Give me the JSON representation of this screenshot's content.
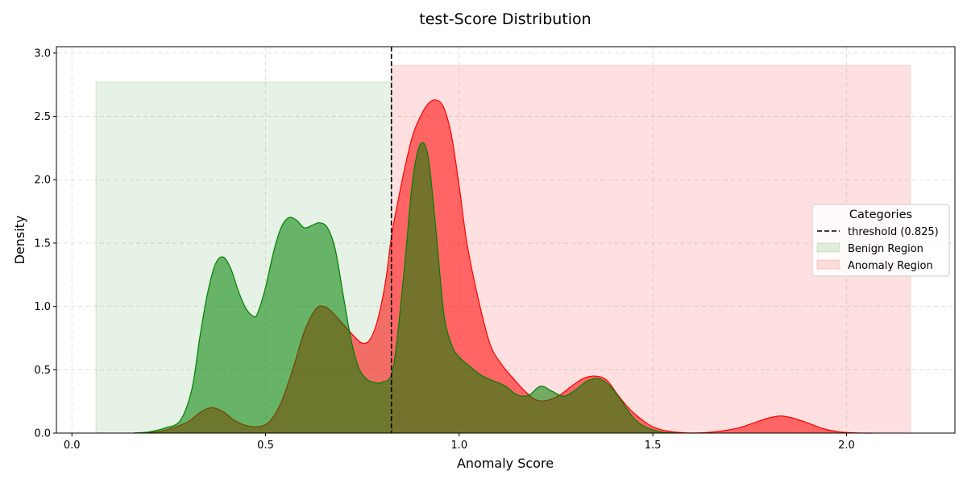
{
  "chart_data": {
    "type": "area",
    "title": "test-Score Distribution",
    "xlabel": "Anomaly Score",
    "ylabel": "Density",
    "xlim": [
      -0.04,
      2.28
    ],
    "ylim": [
      0,
      3.05
    ],
    "x_ticks": [
      0.0,
      0.5,
      1.0,
      1.5,
      2.0
    ],
    "x_tick_labels": [
      "0.0",
      "0.5",
      "1.0",
      "1.5",
      "2.0"
    ],
    "y_ticks": [
      0.0,
      0.5,
      1.0,
      1.5,
      2.0,
      2.5,
      3.0
    ],
    "y_tick_labels": [
      "0.0",
      "0.5",
      "1.0",
      "1.5",
      "2.0",
      "2.5",
      "3.0"
    ],
    "grid": true,
    "legend": {
      "title": "Categories",
      "placement": "center-right",
      "entries": [
        "threshold (0.825)",
        "Benign Region",
        "Anomaly Region"
      ]
    },
    "threshold": {
      "x": 0.825,
      "label": "threshold (0.825)",
      "color": "#000000"
    },
    "regions": [
      {
        "name": "Benign Region",
        "x0": 0.062,
        "x1": 0.825,
        "y": 2.77,
        "color": "#008000",
        "opacity": 0.1
      },
      {
        "name": "Anomaly Region",
        "x0": 0.825,
        "x1": 2.165,
        "y": 2.9,
        "color": "#ff0000",
        "opacity": 0.12
      }
    ],
    "series": [
      {
        "color": "#ff0000",
        "opacity": 0.55,
        "x": [
          0.16,
          0.22,
          0.26,
          0.3,
          0.33,
          0.36,
          0.39,
          0.42,
          0.45,
          0.48,
          0.51,
          0.54,
          0.57,
          0.6,
          0.63,
          0.65,
          0.67,
          0.7,
          0.73,
          0.75,
          0.77,
          0.79,
          0.81,
          0.825,
          0.84,
          0.86,
          0.88,
          0.9,
          0.92,
          0.94,
          0.96,
          0.98,
          1.0,
          1.02,
          1.05,
          1.08,
          1.11,
          1.14,
          1.17,
          1.2,
          1.23,
          1.26,
          1.29,
          1.32,
          1.35,
          1.38,
          1.41,
          1.44,
          1.47,
          1.5,
          1.54,
          1.6,
          1.66,
          1.72,
          1.76,
          1.8,
          1.83,
          1.86,
          1.9,
          1.94,
          1.98,
          2.02,
          2.065
        ],
        "values": [
          0.0,
          0.01,
          0.04,
          0.09,
          0.16,
          0.2,
          0.17,
          0.1,
          0.06,
          0.05,
          0.09,
          0.24,
          0.5,
          0.8,
          0.98,
          1.0,
          0.96,
          0.86,
          0.76,
          0.71,
          0.74,
          0.9,
          1.2,
          1.55,
          1.8,
          2.1,
          2.35,
          2.5,
          2.6,
          2.63,
          2.57,
          2.35,
          1.95,
          1.5,
          1.05,
          0.7,
          0.54,
          0.43,
          0.33,
          0.26,
          0.26,
          0.3,
          0.37,
          0.43,
          0.45,
          0.42,
          0.3,
          0.19,
          0.11,
          0.05,
          0.015,
          0.0,
          0.01,
          0.04,
          0.08,
          0.12,
          0.135,
          0.12,
          0.08,
          0.035,
          0.01,
          0.002,
          0.0
        ]
      },
      {
        "color": "#008000",
        "opacity": 0.55,
        "x": [
          0.16,
          0.2,
          0.24,
          0.28,
          0.31,
          0.33,
          0.35,
          0.37,
          0.39,
          0.41,
          0.43,
          0.45,
          0.47,
          0.48,
          0.5,
          0.52,
          0.54,
          0.56,
          0.58,
          0.6,
          0.62,
          0.64,
          0.66,
          0.68,
          0.7,
          0.72,
          0.74,
          0.76,
          0.78,
          0.8,
          0.825,
          0.84,
          0.86,
          0.88,
          0.9,
          0.92,
          0.94,
          0.96,
          0.98,
          1.0,
          1.03,
          1.06,
          1.09,
          1.12,
          1.15,
          1.18,
          1.21,
          1.24,
          1.27,
          1.3,
          1.33,
          1.36,
          1.39,
          1.42,
          1.45,
          1.48,
          1.52,
          1.56
        ],
        "values": [
          0.0,
          0.01,
          0.04,
          0.1,
          0.35,
          0.75,
          1.1,
          1.33,
          1.39,
          1.3,
          1.12,
          0.98,
          0.92,
          0.95,
          1.15,
          1.42,
          1.62,
          1.7,
          1.68,
          1.62,
          1.64,
          1.66,
          1.62,
          1.45,
          1.1,
          0.75,
          0.52,
          0.43,
          0.4,
          0.4,
          0.46,
          0.75,
          1.35,
          2.0,
          2.28,
          2.18,
          1.6,
          0.95,
          0.7,
          0.6,
          0.52,
          0.45,
          0.41,
          0.37,
          0.3,
          0.3,
          0.37,
          0.33,
          0.29,
          0.34,
          0.41,
          0.43,
          0.37,
          0.25,
          0.12,
          0.05,
          0.01,
          0.0
        ]
      }
    ]
  }
}
